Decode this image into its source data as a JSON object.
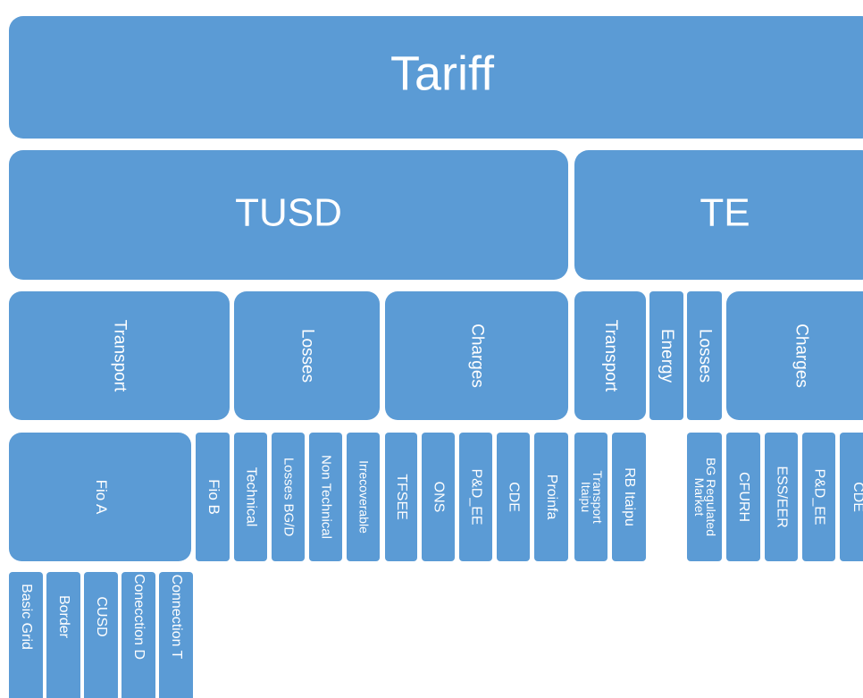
{
  "nodes": [
    {
      "lines": [
        "Tariff"
      ]
    },
    {
      "lines": [
        "TUSD"
      ]
    },
    {
      "lines": [
        "TE"
      ]
    },
    {
      "lines": [
        "Transport"
      ]
    },
    {
      "lines": [
        "Losses"
      ]
    },
    {
      "lines": [
        "Charges"
      ]
    },
    {
      "lines": [
        "Transport"
      ]
    },
    {
      "lines": [
        "Energy"
      ]
    },
    {
      "lines": [
        "Losses"
      ]
    },
    {
      "lines": [
        "Charges"
      ]
    },
    {
      "lines": [
        "Fio A"
      ]
    },
    {
      "lines": [
        "Fio B"
      ]
    },
    {
      "lines": [
        "Technical"
      ]
    },
    {
      "lines": [
        "Losses BG/D"
      ]
    },
    {
      "lines": [
        "Non Technical"
      ]
    },
    {
      "lines": [
        "Irrecoverable"
      ]
    },
    {
      "lines": [
        "TFSEE"
      ]
    },
    {
      "lines": [
        "ONS"
      ]
    },
    {
      "lines": [
        "P&D_EE"
      ]
    },
    {
      "lines": [
        "CDE"
      ]
    },
    {
      "lines": [
        "Proinfa"
      ]
    },
    {
      "lines": [
        "Transport",
        "Itaipu"
      ]
    },
    {
      "lines": [
        "RB Itaipu"
      ]
    },
    {
      "lines": [
        "BG Regulated",
        "Market"
      ]
    },
    {
      "lines": [
        "CFURH"
      ]
    },
    {
      "lines": [
        "ESS/EER"
      ]
    },
    {
      "lines": [
        "P&D_EE"
      ]
    },
    {
      "lines": [
        "CDE"
      ]
    },
    {
      "lines": [
        "Basic Grid"
      ]
    },
    {
      "lines": [
        "Border"
      ]
    },
    {
      "lines": [
        "CUSD"
      ]
    },
    {
      "lines": [
        "Conecction D"
      ]
    },
    {
      "lines": [
        "Connection T"
      ]
    }
  ]
}
